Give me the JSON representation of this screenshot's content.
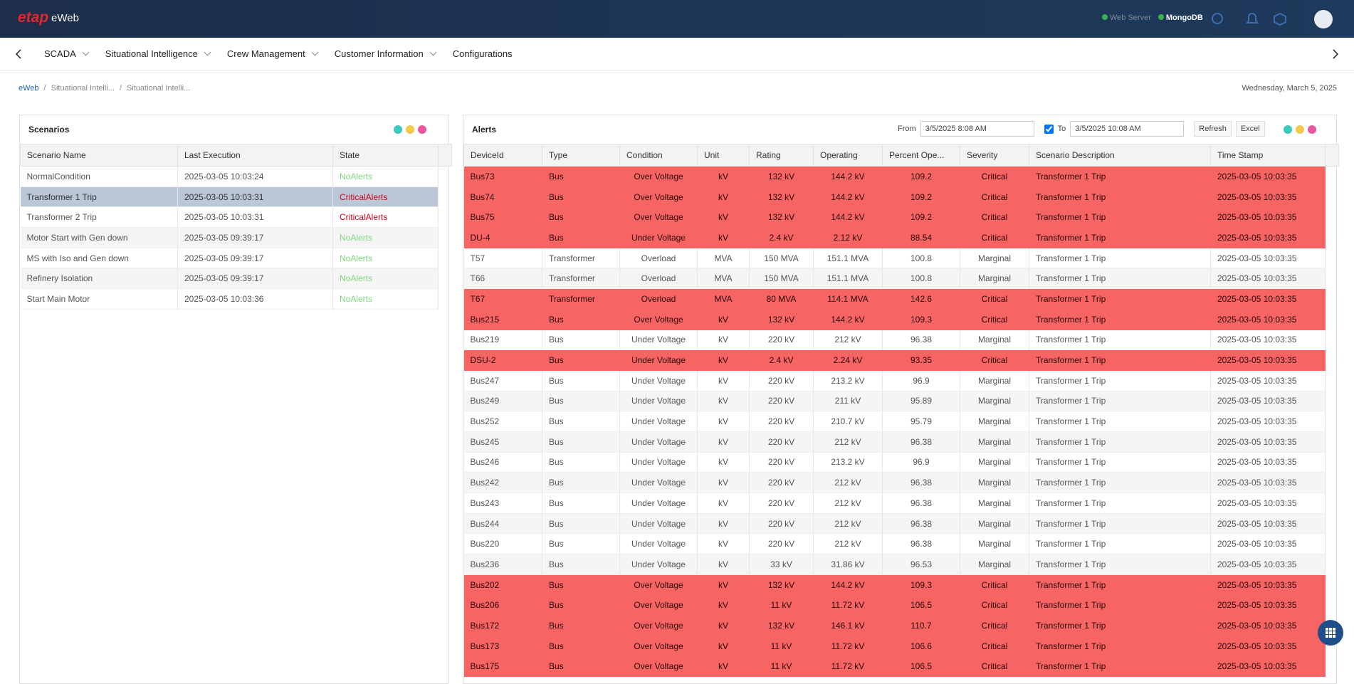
{
  "header": {
    "logo": "etap",
    "app": "eWeb",
    "status": [
      "Web Server",
      "MongoDB"
    ]
  },
  "nav": {
    "items": [
      "SCADA",
      "Situational Intelligence",
      "Crew Management",
      "Customer Information",
      "Configurations"
    ]
  },
  "breadcrumb": {
    "items": [
      "eWeb",
      "Situational Intelli...",
      "Situational Intelli..."
    ],
    "date": "Wednesday, March 5, 2025"
  },
  "scenarios": {
    "title": "Scenarios",
    "columns": [
      "Scenario Name",
      "Last Execution",
      "State"
    ],
    "rows": [
      [
        "NormalCondition",
        "2025-03-05 10:03:24",
        "NoAlerts"
      ],
      [
        "Transformer 1 Trip",
        "2025-03-05 10:03:31",
        "CriticalAlerts"
      ],
      [
        "Transformer 2 Trip",
        "2025-03-05 10:03:31",
        "CriticalAlerts"
      ],
      [
        "Motor Start with Gen down",
        "2025-03-05 09:39:17",
        "NoAlerts"
      ],
      [
        "MS with Iso and Gen down",
        "2025-03-05 09:39:17",
        "NoAlerts"
      ],
      [
        "Refinery Isolation",
        "2025-03-05 09:39:17",
        "NoAlerts"
      ],
      [
        "Start Main Motor",
        "2025-03-05 10:03:36",
        "NoAlerts"
      ]
    ]
  },
  "alerts": {
    "title": "Alerts",
    "from_label": "From",
    "from_value": "3/5/2025 8:08 AM",
    "to_label": "To",
    "to_value": "3/5/2025 10:08 AM",
    "buttons": [
      "Refresh",
      "Excel"
    ],
    "columns": [
      "DeviceId",
      "Type",
      "Condition",
      "Unit",
      "Rating",
      "Operating",
      "Percent Ope...",
      "Severity",
      "Scenario Description",
      "Time Stamp"
    ],
    "rows": [
      [
        "Bus73",
        "Bus",
        "Over Voltage",
        "kV",
        "132 kV",
        "144.2 kV",
        "109.2",
        "Critical",
        "Transformer 1 Trip",
        "2025-03-05 10:03:35"
      ],
      [
        "Bus74",
        "Bus",
        "Over Voltage",
        "kV",
        "132 kV",
        "144.2 kV",
        "109.2",
        "Critical",
        "Transformer 1 Trip",
        "2025-03-05 10:03:35"
      ],
      [
        "Bus75",
        "Bus",
        "Over Voltage",
        "kV",
        "132 kV",
        "144.2 kV",
        "109.2",
        "Critical",
        "Transformer 1 Trip",
        "2025-03-05 10:03:35"
      ],
      [
        "DU-4",
        "Bus",
        "Under Voltage",
        "kV",
        "2.4 kV",
        "2.12 kV",
        "88.54",
        "Critical",
        "Transformer 1 Trip",
        "2025-03-05 10:03:35"
      ],
      [
        "T57",
        "Transformer",
        "Overload",
        "MVA",
        "150 MVA",
        "151.1 MVA",
        "100.8",
        "Marginal",
        "Transformer 1 Trip",
        "2025-03-05 10:03:35"
      ],
      [
        "T66",
        "Transformer",
        "Overload",
        "MVA",
        "150 MVA",
        "151.1 MVA",
        "100.8",
        "Marginal",
        "Transformer 1 Trip",
        "2025-03-05 10:03:35"
      ],
      [
        "T67",
        "Transformer",
        "Overload",
        "MVA",
        "80 MVA",
        "114.1 MVA",
        "142.6",
        "Critical",
        "Transformer 1 Trip",
        "2025-03-05 10:03:35"
      ],
      [
        "Bus215",
        "Bus",
        "Over Voltage",
        "kV",
        "132 kV",
        "144.2 kV",
        "109.3",
        "Critical",
        "Transformer 1 Trip",
        "2025-03-05 10:03:35"
      ],
      [
        "Bus219",
        "Bus",
        "Under Voltage",
        "kV",
        "220 kV",
        "212 kV",
        "96.38",
        "Marginal",
        "Transformer 1 Trip",
        "2025-03-05 10:03:35"
      ],
      [
        "DSU-2",
        "Bus",
        "Under Voltage",
        "kV",
        "2.4 kV",
        "2.24 kV",
        "93.35",
        "Critical",
        "Transformer 1 Trip",
        "2025-03-05 10:03:35"
      ],
      [
        "Bus247",
        "Bus",
        "Under Voltage",
        "kV",
        "220 kV",
        "213.2 kV",
        "96.9",
        "Marginal",
        "Transformer 1 Trip",
        "2025-03-05 10:03:35"
      ],
      [
        "Bus249",
        "Bus",
        "Under Voltage",
        "kV",
        "220 kV",
        "211 kV",
        "95.89",
        "Marginal",
        "Transformer 1 Trip",
        "2025-03-05 10:03:35"
      ],
      [
        "Bus252",
        "Bus",
        "Under Voltage",
        "kV",
        "220 kV",
        "210.7 kV",
        "95.79",
        "Marginal",
        "Transformer 1 Trip",
        "2025-03-05 10:03:35"
      ],
      [
        "Bus245",
        "Bus",
        "Under Voltage",
        "kV",
        "220 kV",
        "212 kV",
        "96.38",
        "Marginal",
        "Transformer 1 Trip",
        "2025-03-05 10:03:35"
      ],
      [
        "Bus246",
        "Bus",
        "Under Voltage",
        "kV",
        "220 kV",
        "213.2 kV",
        "96.9",
        "Marginal",
        "Transformer 1 Trip",
        "2025-03-05 10:03:35"
      ],
      [
        "Bus242",
        "Bus",
        "Under Voltage",
        "kV",
        "220 kV",
        "212 kV",
        "96.38",
        "Marginal",
        "Transformer 1 Trip",
        "2025-03-05 10:03:35"
      ],
      [
        "Bus243",
        "Bus",
        "Under Voltage",
        "kV",
        "220 kV",
        "212 kV",
        "96.38",
        "Marginal",
        "Transformer 1 Trip",
        "2025-03-05 10:03:35"
      ],
      [
        "Bus244",
        "Bus",
        "Under Voltage",
        "kV",
        "220 kV",
        "212 kV",
        "96.38",
        "Marginal",
        "Transformer 1 Trip",
        "2025-03-05 10:03:35"
      ],
      [
        "Bus220",
        "Bus",
        "Under Voltage",
        "kV",
        "220 kV",
        "212 kV",
        "96.38",
        "Marginal",
        "Transformer 1 Trip",
        "2025-03-05 10:03:35"
      ],
      [
        "Bus236",
        "Bus",
        "Under Voltage",
        "kV",
        "33 kV",
        "31.86 kV",
        "96.53",
        "Marginal",
        "Transformer 1 Trip",
        "2025-03-05 10:03:35"
      ],
      [
        "Bus202",
        "Bus",
        "Over Voltage",
        "kV",
        "132 kV",
        "144.2 kV",
        "109.3",
        "Critical",
        "Transformer 1 Trip",
        "2025-03-05 10:03:35"
      ],
      [
        "Bus206",
        "Bus",
        "Over Voltage",
        "kV",
        "11 kV",
        "11.72 kV",
        "106.5",
        "Critical",
        "Transformer 1 Trip",
        "2025-03-05 10:03:35"
      ],
      [
        "Bus172",
        "Bus",
        "Over Voltage",
        "kV",
        "132 kV",
        "146.1 kV",
        "110.7",
        "Critical",
        "Transformer 1 Trip",
        "2025-03-05 10:03:35"
      ],
      [
        "Bus173",
        "Bus",
        "Over Voltage",
        "kV",
        "11 kV",
        "11.72 kV",
        "106.6",
        "Critical",
        "Transformer 1 Trip",
        "2025-03-05 10:03:35"
      ],
      [
        "Bus175",
        "Bus",
        "Over Voltage",
        "kV",
        "11 kV",
        "11.72 kV",
        "106.5",
        "Critical",
        "Transformer 1 Trip",
        "2025-03-05 10:03:35"
      ]
    ]
  }
}
